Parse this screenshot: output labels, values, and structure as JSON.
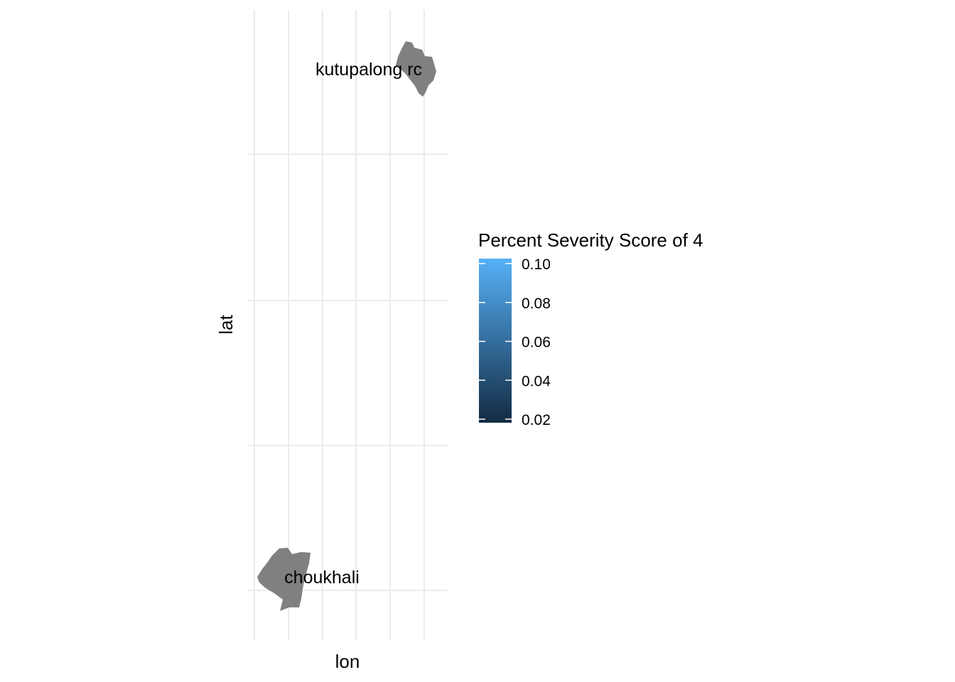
{
  "map": {
    "x_axis_label": "lon",
    "y_axis_label": "lat",
    "grid": true,
    "grid_color": "#ebebeb",
    "region_fill": "#808080",
    "regions": [
      {
        "id": "kutupalong",
        "label": "kutupalong rc",
        "value": null
      },
      {
        "id": "choukhali",
        "label": "choukhali",
        "value": null
      }
    ]
  },
  "legend": {
    "title": "Percent Severity Score of 4",
    "position": "right",
    "color_low": "#132B43",
    "color_high": "#56B1F7",
    "min": 0.02,
    "max": 0.1,
    "ticks": [
      "0.10",
      "0.08",
      "0.06",
      "0.04",
      "0.02"
    ]
  }
}
